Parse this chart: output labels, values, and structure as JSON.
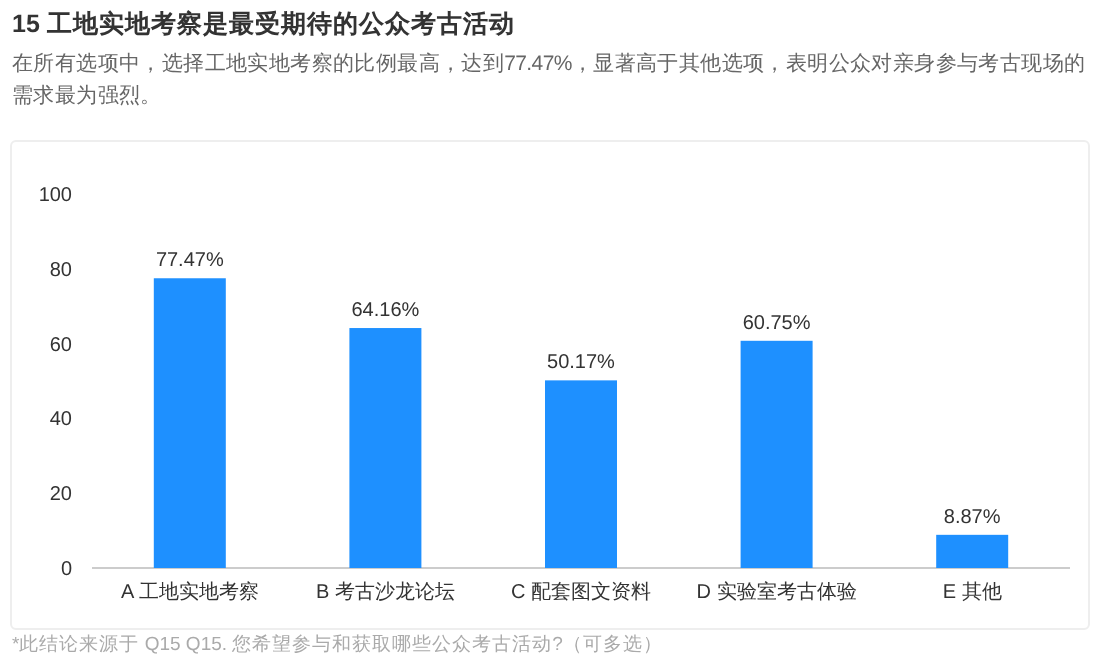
{
  "chart_data": {
    "type": "bar",
    "title": "15 工地实地考察是最受期待的公众考古活动",
    "subtitle": "在所有选项中，选择工地实地考察的比例最高，达到77.47%，显著高于其他选项，表明公众对亲身参与考古现场的需求最为强烈。",
    "categories": [
      "A 工地实地考察",
      "B 考古沙龙论坛",
      "C 配套图文资料",
      "D 实验室考古体验",
      "E 其他"
    ],
    "values": [
      77.47,
      64.16,
      50.17,
      60.75,
      8.87
    ],
    "value_labels": [
      "77.47%",
      "64.16%",
      "50.17%",
      "60.75%",
      "8.87%"
    ],
    "color": "#1e90ff",
    "ylim": [
      0,
      100
    ],
    "yticks": [
      0,
      20,
      40,
      60,
      80,
      100
    ],
    "grid": false,
    "annotations": [
      "*此结论来源于 Q15 Q15. 您希望参与和获取哪些公众考古活动?（可多选）"
    ]
  }
}
